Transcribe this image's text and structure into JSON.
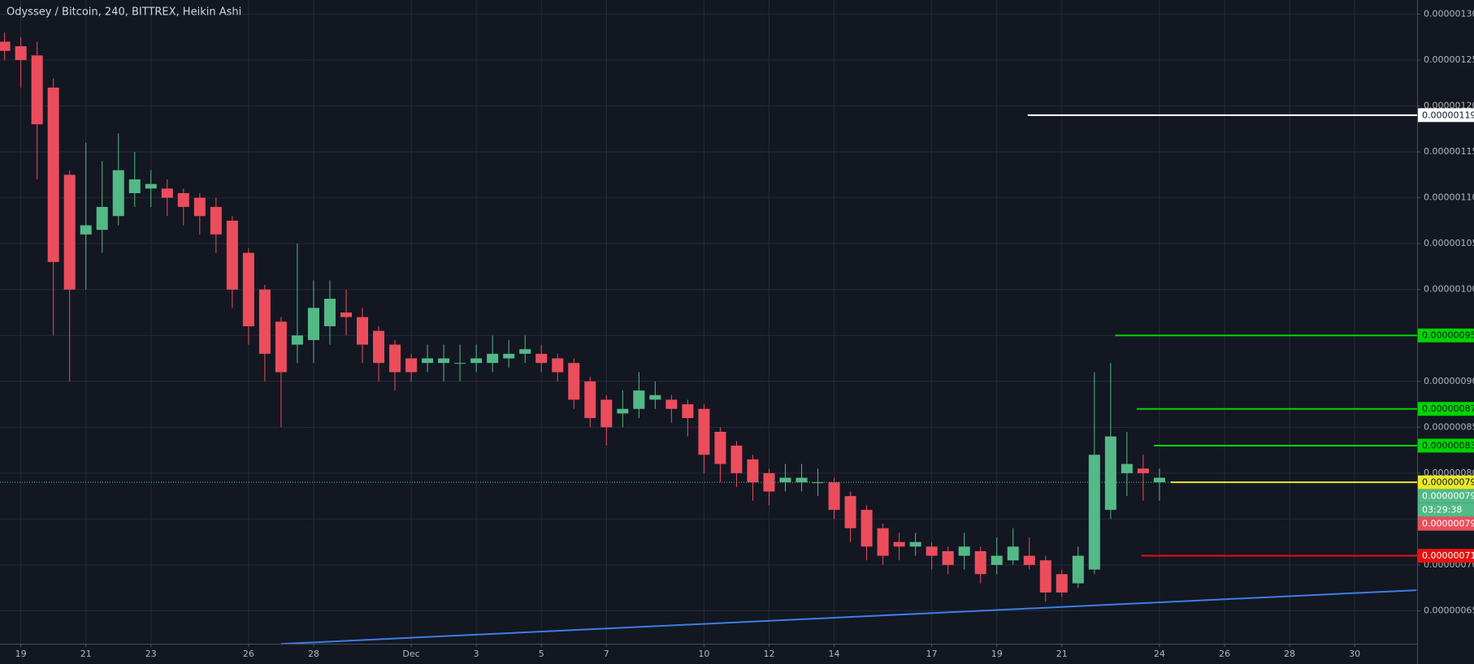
{
  "chart_data": {
    "type": "candlestick",
    "title": "Odyssey / Bitcoin, 240, BITTREX, Heikin Ashi",
    "up_color": "#53b987",
    "down_color": "#eb4d5c",
    "grid": true,
    "xlim": [
      -0.64,
      42.92
    ],
    "ylim": [
      6.142e-07,
      1.3154e-06
    ],
    "xticks": [
      {
        "value": 0,
        "label": "19"
      },
      {
        "value": 2,
        "label": "21"
      },
      {
        "value": 4,
        "label": "23"
      },
      {
        "value": 7,
        "label": "26"
      },
      {
        "value": 9,
        "label": "28"
      },
      {
        "value": 12,
        "label": "Dec"
      },
      {
        "value": 14,
        "label": "3"
      },
      {
        "value": 16,
        "label": "5"
      },
      {
        "value": 18,
        "label": "7"
      },
      {
        "value": 21,
        "label": "10"
      },
      {
        "value": 23,
        "label": "12"
      },
      {
        "value": 25,
        "label": "14"
      },
      {
        "value": 28,
        "label": "17"
      },
      {
        "value": 30,
        "label": "19"
      },
      {
        "value": 32,
        "label": "21"
      },
      {
        "value": 35,
        "label": "24"
      },
      {
        "value": 37,
        "label": "26"
      },
      {
        "value": 39,
        "label": "28"
      },
      {
        "value": 41,
        "label": "30"
      }
    ],
    "yticks": [
      {
        "value": 6.5e-07,
        "label": "0.00000065"
      },
      {
        "value": 7e-07,
        "label": "0.00000070"
      },
      {
        "value": 7.5e-07,
        "label": "0.00000075"
      },
      {
        "value": 8e-07,
        "label": "0.00000080"
      },
      {
        "value": 8.5e-07,
        "label": "0.00000085"
      },
      {
        "value": 9e-07,
        "label": "0.00000090"
      },
      {
        "value": 9.5e-07,
        "label": "0.00000095"
      },
      {
        "value": 1e-06,
        "label": "0.00000100"
      },
      {
        "value": 1.05e-06,
        "label": "0.00000105"
      },
      {
        "value": 1.1e-06,
        "label": "0.00000110"
      },
      {
        "value": 1.15e-06,
        "label": "0.00000115"
      },
      {
        "value": 1.2e-06,
        "label": "0.00000120"
      },
      {
        "value": 1.25e-06,
        "label": "0.00000125"
      },
      {
        "value": 1.3e-06,
        "label": "0.00000130"
      }
    ],
    "candles": {
      "x": [
        -0.5,
        0,
        0.5,
        1,
        1.5,
        2,
        2.5,
        3,
        3.5,
        4,
        4.5,
        5,
        5.5,
        6,
        6.5,
        7,
        7.5,
        8,
        8.5,
        9,
        9.5,
        10,
        10.5,
        11,
        11.5,
        12,
        12.5,
        13,
        13.5,
        14,
        14.5,
        15,
        15.5,
        16,
        16.5,
        17,
        17.5,
        18,
        18.5,
        19,
        19.5,
        20,
        20.5,
        21,
        21.5,
        22,
        22.5,
        23,
        23.5,
        24,
        24.5,
        25,
        25.5,
        26,
        26.5,
        27,
        27.5,
        28,
        28.5,
        29,
        29.5,
        30,
        30.5,
        31,
        31.5,
        32,
        32.5,
        33,
        33.5,
        34,
        34.5,
        35
      ],
      "open": [
        1.27e-06,
        1.265e-06,
        1.255e-06,
        1.22e-06,
        1.125e-06,
        1.06e-06,
        1.065e-06,
        1.08e-06,
        1.105e-06,
        1.11e-06,
        1.11e-06,
        1.105e-06,
        1.1e-06,
        1.09e-06,
        1.075e-06,
        1.04e-06,
        1e-06,
        9.65e-07,
        9.4e-07,
        9.45e-07,
        9.6e-07,
        9.75e-07,
        9.7e-07,
        9.55e-07,
        9.4e-07,
        9.25e-07,
        9.2e-07,
        9.2e-07,
        9.2e-07,
        9.2e-07,
        9.2e-07,
        9.25e-07,
        9.3e-07,
        9.3e-07,
        9.25e-07,
        9.2e-07,
        9e-07,
        8.8e-07,
        8.65e-07,
        8.7e-07,
        8.8e-07,
        8.8e-07,
        8.75e-07,
        8.7e-07,
        8.45e-07,
        8.3e-07,
        8.15e-07,
        8e-07,
        7.9e-07,
        7.9e-07,
        7.9e-07,
        7.9e-07,
        7.75e-07,
        7.6e-07,
        7.4e-07,
        7.25e-07,
        7.2e-07,
        7.2e-07,
        7.15e-07,
        7.1e-07,
        7.15e-07,
        7e-07,
        7.05e-07,
        7.1e-07,
        7.05e-07,
        6.9e-07,
        6.8e-07,
        6.95e-07,
        7.6e-07,
        8e-07,
        8.05e-07,
        7.9e-07
      ],
      "high": [
        1.28e-06,
        1.275e-06,
        1.27e-06,
        1.23e-06,
        1.13e-06,
        1.16e-06,
        1.14e-06,
        1.17e-06,
        1.15e-06,
        1.13e-06,
        1.12e-06,
        1.11e-06,
        1.105e-06,
        1.1e-06,
        1.08e-06,
        1.045e-06,
        1.005e-06,
        9.7e-07,
        1.05e-06,
        1.01e-06,
        1.01e-06,
        1e-06,
        9.8e-07,
        9.6e-07,
        9.45e-07,
        9.3e-07,
        9.4e-07,
        9.4e-07,
        9.4e-07,
        9.4e-07,
        9.5e-07,
        9.45e-07,
        9.5e-07,
        9.4e-07,
        9.3e-07,
        9.25e-07,
        9.05e-07,
        8.85e-07,
        8.9e-07,
        9.1e-07,
        9e-07,
        8.85e-07,
        8.8e-07,
        8.75e-07,
        8.5e-07,
        8.35e-07,
        8.2e-07,
        8.05e-07,
        8.1e-07,
        8.1e-07,
        8.05e-07,
        7.95e-07,
        7.8e-07,
        7.65e-07,
        7.45e-07,
        7.35e-07,
        7.35e-07,
        7.25e-07,
        7.2e-07,
        7.35e-07,
        7.2e-07,
        7.3e-07,
        7.4e-07,
        7.3e-07,
        7.1e-07,
        6.95e-07,
        7.2e-07,
        9.1e-07,
        9.2e-07,
        8.45e-07,
        8.2e-07,
        8.05e-07
      ],
      "low": [
        1.25e-06,
        1.22e-06,
        1.12e-06,
        9.5e-07,
        9e-07,
        1e-06,
        1.04e-06,
        1.07e-06,
        1.09e-06,
        1.09e-06,
        1.08e-06,
        1.07e-06,
        1.06e-06,
        1.04e-06,
        9.8e-07,
        9.4e-07,
        9e-07,
        8.5e-07,
        9.2e-07,
        9.2e-07,
        9.4e-07,
        9.5e-07,
        9.2e-07,
        9e-07,
        8.9e-07,
        9e-07,
        9.1e-07,
        9e-07,
        9e-07,
        9.1e-07,
        9.1e-07,
        9.15e-07,
        9.2e-07,
        9.1e-07,
        9e-07,
        8.7e-07,
        8.5e-07,
        8.3e-07,
        8.5e-07,
        8.6e-07,
        8.7e-07,
        8.55e-07,
        8.4e-07,
        8e-07,
        7.9e-07,
        7.85e-07,
        7.7e-07,
        7.65e-07,
        7.8e-07,
        7.8e-07,
        7.75e-07,
        7.5e-07,
        7.25e-07,
        7.05e-07,
        7e-07,
        7.05e-07,
        7.1e-07,
        6.95e-07,
        6.9e-07,
        6.95e-07,
        6.8e-07,
        6.9e-07,
        7e-07,
        6.95e-07,
        6.6e-07,
        6.65e-07,
        6.75e-07,
        6.9e-07,
        7.5e-07,
        7.75e-07,
        7.7e-07,
        7.7e-07
      ],
      "close": [
        1.26e-06,
        1.25e-06,
        1.18e-06,
        1.03e-06,
        1e-06,
        1.07e-06,
        1.09e-06,
        1.13e-06,
        1.12e-06,
        1.115e-06,
        1.1e-06,
        1.09e-06,
        1.08e-06,
        1.06e-06,
        1e-06,
        9.6e-07,
        9.3e-07,
        9.1e-07,
        9.5e-07,
        9.8e-07,
        9.9e-07,
        9.7e-07,
        9.4e-07,
        9.2e-07,
        9.1e-07,
        9.1e-07,
        9.25e-07,
        9.25e-07,
        9.2e-07,
        9.25e-07,
        9.3e-07,
        9.3e-07,
        9.35e-07,
        9.2e-07,
        9.1e-07,
        8.8e-07,
        8.6e-07,
        8.5e-07,
        8.7e-07,
        8.9e-07,
        8.85e-07,
        8.7e-07,
        8.6e-07,
        8.2e-07,
        8.1e-07,
        8e-07,
        7.9e-07,
        7.8e-07,
        7.95e-07,
        7.95e-07,
        7.9e-07,
        7.6e-07,
        7.4e-07,
        7.2e-07,
        7.1e-07,
        7.2e-07,
        7.25e-07,
        7.1e-07,
        7e-07,
        7.2e-07,
        6.9e-07,
        7.1e-07,
        7.2e-07,
        7e-07,
        6.7e-07,
        6.7e-07,
        7.1e-07,
        8.2e-07,
        8.4e-07,
        8.1e-07,
        8e-07,
        7.95e-07
      ]
    },
    "trendline": {
      "color": "#3d7de6",
      "x": [
        8,
        42.9
      ],
      "values": [
        6.14e-07,
        6.725e-07
      ]
    },
    "levels": [
      {
        "value": 1.19e-06,
        "label": "0.00000119",
        "x": 30.95,
        "color": "#ffffff",
        "text_color": "#131722"
      },
      {
        "value": 9.5e-07,
        "label": "0.00000095",
        "x": 33.64,
        "color": "#00d400",
        "text_color": "#131722"
      },
      {
        "value": 8.7e-07,
        "label": "0.00000087",
        "x": 34.3,
        "color": "#00d400",
        "text_color": "#131722"
      },
      {
        "value": 8.3e-07,
        "label": "0.00000083",
        "x": 34.83,
        "color": "#00d400",
        "text_color": "#131722"
      },
      {
        "value": 7.9e-07,
        "label": "0.00000079",
        "x": 35.35,
        "color": "#e8e82a",
        "text_color": "#131722",
        "dotted": true
      },
      {
        "value": 7.1e-07,
        "label": "0.00000071",
        "x": 34.45,
        "color": "#e81010",
        "text_color": "#ffffff"
      }
    ],
    "price_tags": [
      {
        "value": 7.9e-07,
        "label": "0.00000079",
        "color": "#53b987"
      },
      {
        "label": "03:29:38",
        "color": "#53b987"
      },
      {
        "value": 7.9e-07,
        "label": "0.00000079",
        "color": "#eb4d5c"
      }
    ]
  }
}
